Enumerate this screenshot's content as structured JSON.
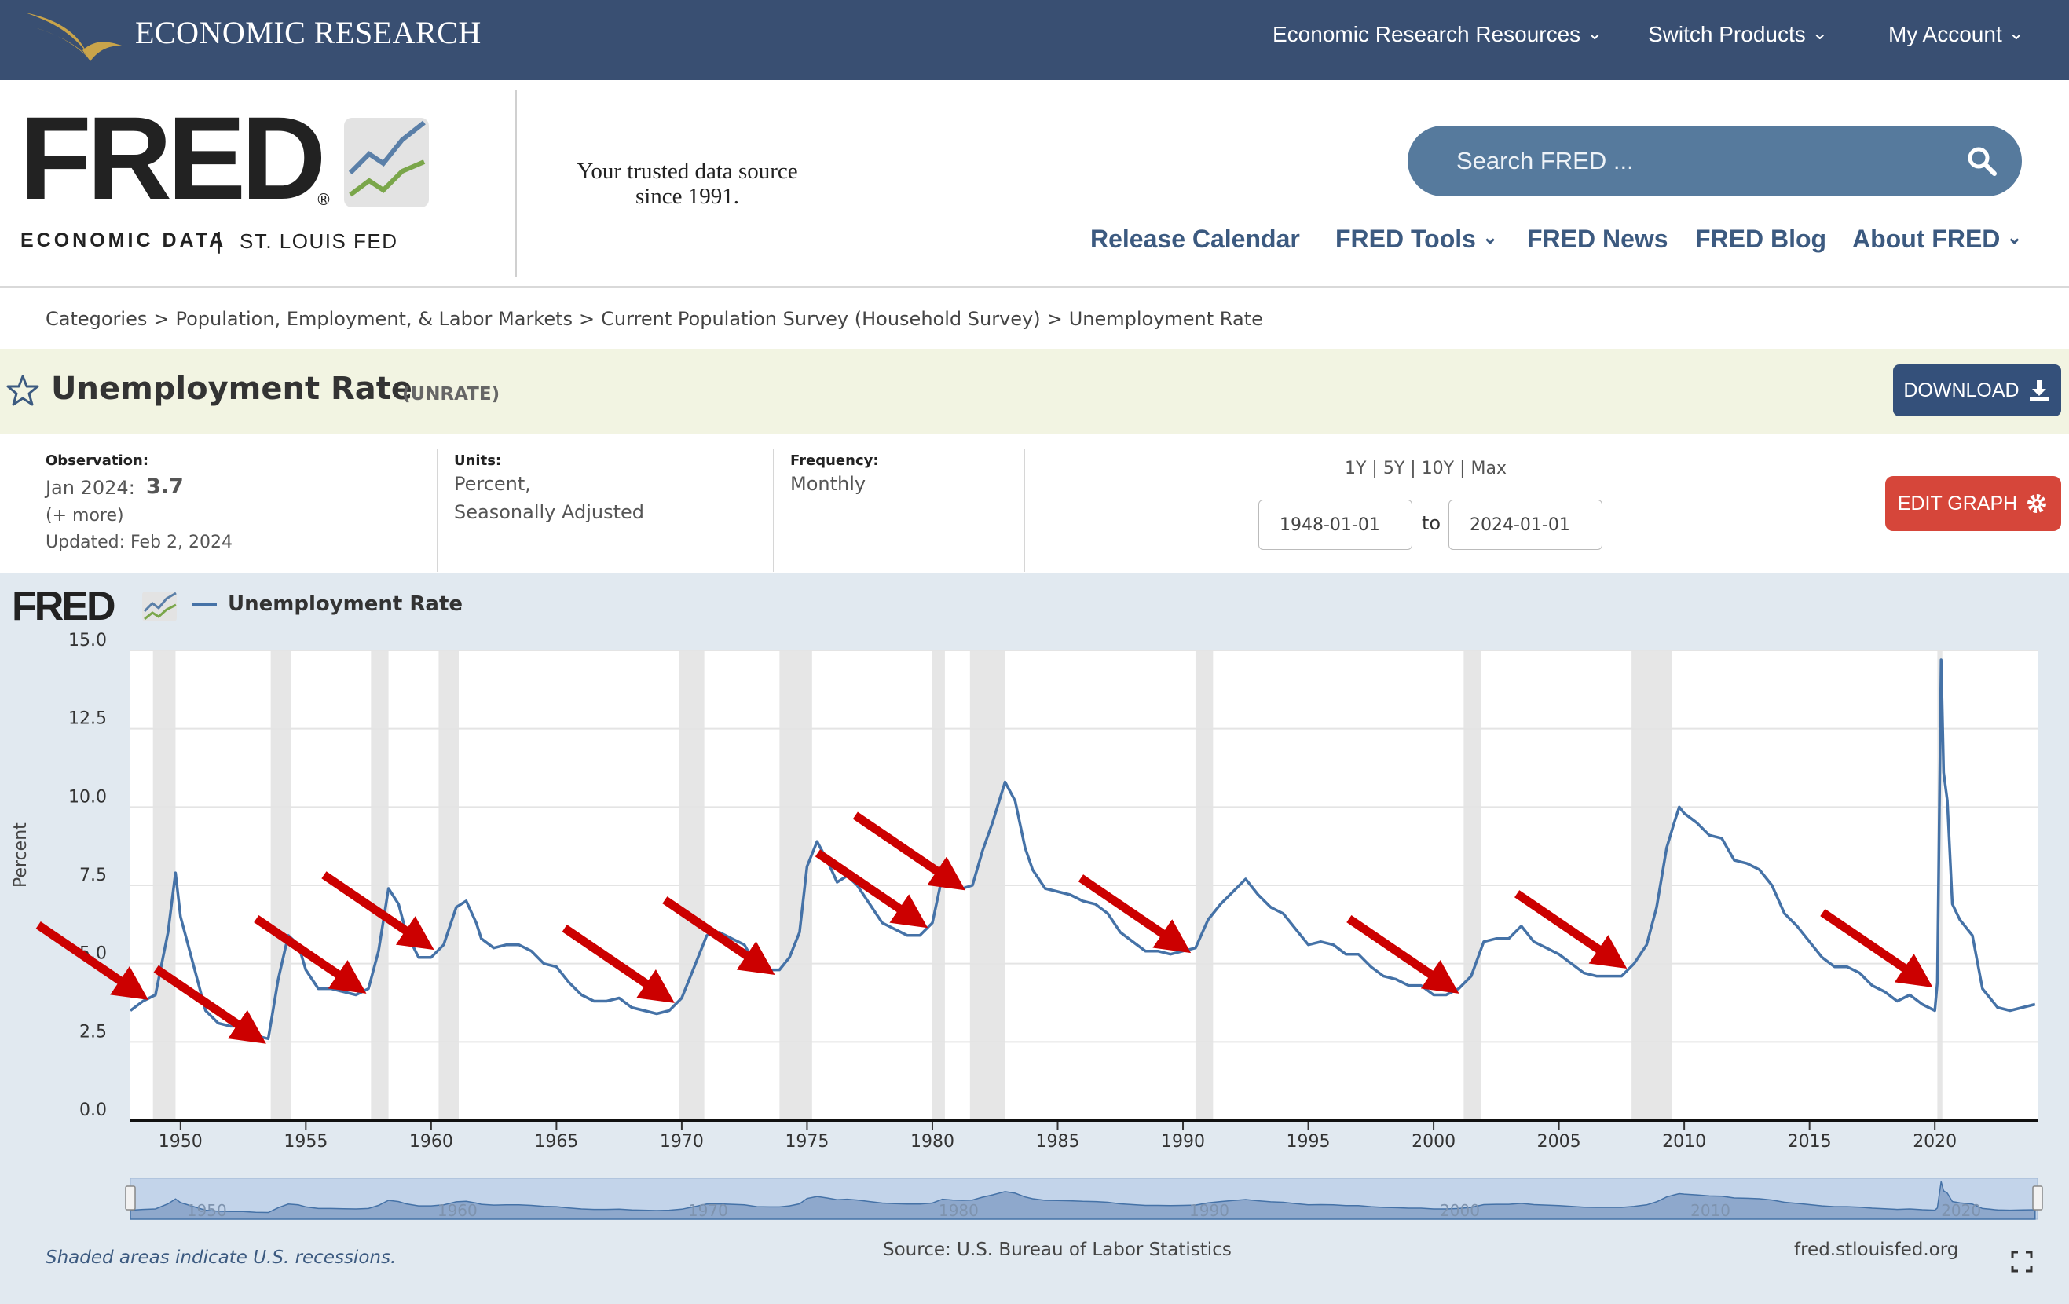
{
  "banner": {
    "brand": "ECONOMIC RESEARCH",
    "nav": [
      "Economic Research Resources",
      "Switch Products",
      "My Account"
    ]
  },
  "header": {
    "logo_word": "FRED",
    "logo_reg": "®",
    "econ_data": "ECONOMIC DATA",
    "divider": "|",
    "stl_fed": "ST. LOUIS FED",
    "tagline_line1": "Your trusted data source",
    "tagline_line2": "since 1991.",
    "search_placeholder": "Search FRED ...",
    "nav": [
      "Release Calendar",
      "FRED Tools",
      "FRED News",
      "FRED Blog",
      "About FRED"
    ]
  },
  "breadcrumb": [
    "Categories",
    "Population, Employment, & Labor Markets",
    "Current Population Survey (Household Survey)",
    "Unemployment Rate"
  ],
  "series": {
    "title": "Unemployment Rate",
    "id": "(UNRATE)",
    "download_label": "DOWNLOAD",
    "edit_label": "EDIT GRAPH"
  },
  "meta": {
    "observation_label": "Observation:",
    "observation_date": "Jan 2024:",
    "observation_value": "3.7",
    "more": "(+ more)",
    "updated": "Updated: Feb 2, 2024",
    "units_label": "Units:",
    "units_line1": "Percent,",
    "units_line2": "Seasonally Adjusted",
    "frequency_label": "Frequency:",
    "frequency_value": "Monthly",
    "range_links": [
      "1Y",
      "5Y",
      "10Y",
      "Max"
    ],
    "date_from": "1948-01-01",
    "date_to": "2024-01-01",
    "to_label": "to"
  },
  "chart_footer": {
    "chart_logo": "FRED",
    "recession_note": "Shaded areas indicate U.S. recessions.",
    "source": "Source: U.S. Bureau of Labor Statistics",
    "url": "fred.stlouisfed.org"
  },
  "colors": {
    "banner": "#394f72",
    "line": "#4572a7",
    "recession": "#e6e6e6",
    "arrow": "#cc0000",
    "edit_button": "#d6463a",
    "download_button": "#34507a"
  },
  "chart_data": {
    "type": "line",
    "title": "",
    "legend": [
      "Unemployment Rate"
    ],
    "ylabel": "Percent",
    "xlabel": "",
    "xlim": [
      1948,
      2024.1
    ],
    "ylim": [
      0,
      15
    ],
    "yticks": [
      "0.0",
      "2.5",
      "5.0",
      "7.5",
      "10.0",
      "12.5",
      "15.0"
    ],
    "xticks": [
      "1950",
      "1955",
      "1960",
      "1965",
      "1970",
      "1975",
      "1980",
      "1985",
      "1990",
      "1995",
      "2000",
      "2005",
      "2010",
      "2015",
      "2020"
    ],
    "navigator_labels": [
      "1950",
      "1960",
      "1970",
      "1980",
      "1990",
      "2000",
      "2010",
      "2020"
    ],
    "recessions": [
      [
        1948.9,
        1949.8
      ],
      [
        1953.6,
        1954.4
      ],
      [
        1957.6,
        1958.3
      ],
      [
        1960.3,
        1961.1
      ],
      [
        1969.9,
        1970.9
      ],
      [
        1973.9,
        1975.2
      ],
      [
        1980.0,
        1980.5
      ],
      [
        1981.5,
        1982.9
      ],
      [
        1990.5,
        1991.2
      ],
      [
        2001.2,
        2001.9
      ],
      [
        2007.9,
        2009.5
      ],
      [
        2020.1,
        2020.3
      ]
    ],
    "series": [
      {
        "name": "Unemployment Rate",
        "x": [
          1948.0,
          1948.5,
          1949.0,
          1949.5,
          1949.8,
          1950.0,
          1950.5,
          1951.0,
          1951.5,
          1952.0,
          1952.5,
          1953.0,
          1953.5,
          1953.9,
          1954.3,
          1954.7,
          1955.0,
          1955.5,
          1956.0,
          1956.5,
          1957.0,
          1957.5,
          1957.9,
          1958.3,
          1958.7,
          1959.0,
          1959.5,
          1960.0,
          1960.5,
          1961.0,
          1961.4,
          1961.8,
          1962.0,
          1962.5,
          1963.0,
          1963.5,
          1964.0,
          1964.5,
          1965.0,
          1965.5,
          1966.0,
          1966.5,
          1967.0,
          1967.5,
          1968.0,
          1968.5,
          1969.0,
          1969.5,
          1970.0,
          1970.5,
          1971.0,
          1971.5,
          1972.0,
          1972.5,
          1973.0,
          1973.5,
          1973.9,
          1974.3,
          1974.7,
          1975.0,
          1975.4,
          1975.8,
          1976.2,
          1976.6,
          1977.0,
          1977.5,
          1978.0,
          1978.5,
          1979.0,
          1979.5,
          1980.0,
          1980.4,
          1980.8,
          1981.2,
          1981.6,
          1982.0,
          1982.4,
          1982.9,
          1983.3,
          1983.7,
          1984.0,
          1984.5,
          1985.0,
          1985.5,
          1986.0,
          1986.5,
          1987.0,
          1987.5,
          1988.0,
          1988.5,
          1989.0,
          1989.5,
          1990.0,
          1990.5,
          1991.0,
          1991.5,
          1992.0,
          1992.5,
          1993.0,
          1993.5,
          1994.0,
          1994.5,
          1995.0,
          1995.5,
          1996.0,
          1996.5,
          1997.0,
          1997.5,
          1998.0,
          1998.5,
          1999.0,
          1999.5,
          2000.0,
          2000.5,
          2001.0,
          2001.5,
          2002.0,
          2002.5,
          2003.0,
          2003.5,
          2004.0,
          2004.5,
          2005.0,
          2005.5,
          2006.0,
          2006.5,
          2007.0,
          2007.5,
          2008.0,
          2008.5,
          2008.9,
          2009.3,
          2009.6,
          2009.8,
          2010.0,
          2010.5,
          2011.0,
          2011.5,
          2012.0,
          2012.5,
          2013.0,
          2013.5,
          2014.0,
          2014.5,
          2015.0,
          2015.5,
          2016.0,
          2016.5,
          2017.0,
          2017.5,
          2018.0,
          2018.5,
          2019.0,
          2019.5,
          2020.0,
          2020.1,
          2020.25,
          2020.35,
          2020.5,
          2020.7,
          2021.0,
          2021.5,
          2021.9,
          2022.2,
          2022.5,
          2023.0,
          2023.5,
          2024.0
        ],
        "values": [
          3.5,
          3.8,
          4.0,
          6.0,
          7.9,
          6.5,
          5.0,
          3.5,
          3.1,
          3.0,
          3.0,
          2.7,
          2.6,
          4.5,
          5.9,
          5.6,
          4.8,
          4.2,
          4.2,
          4.1,
          4.0,
          4.2,
          5.4,
          7.4,
          6.9,
          6.0,
          5.2,
          5.2,
          5.6,
          6.8,
          7.0,
          6.3,
          5.8,
          5.5,
          5.6,
          5.6,
          5.4,
          5.0,
          4.9,
          4.4,
          4.0,
          3.8,
          3.8,
          3.9,
          3.6,
          3.5,
          3.4,
          3.5,
          3.9,
          4.9,
          5.9,
          6.0,
          5.8,
          5.6,
          4.9,
          4.8,
          4.8,
          5.2,
          6.0,
          8.1,
          8.9,
          8.3,
          7.6,
          7.8,
          7.5,
          6.9,
          6.3,
          6.1,
          5.9,
          5.9,
          6.3,
          7.8,
          7.5,
          7.4,
          7.5,
          8.6,
          9.5,
          10.8,
          10.2,
          8.7,
          8.0,
          7.4,
          7.3,
          7.2,
          7.0,
          6.9,
          6.6,
          6.0,
          5.7,
          5.4,
          5.4,
          5.3,
          5.4,
          5.5,
          6.4,
          6.9,
          7.3,
          7.7,
          7.2,
          6.8,
          6.6,
          6.1,
          5.6,
          5.7,
          5.6,
          5.3,
          5.3,
          4.9,
          4.6,
          4.5,
          4.3,
          4.3,
          4.0,
          4.0,
          4.2,
          4.6,
          5.7,
          5.8,
          5.8,
          6.2,
          5.7,
          5.5,
          5.3,
          5.0,
          4.7,
          4.6,
          4.6,
          4.6,
          5.0,
          5.6,
          6.8,
          8.7,
          9.5,
          10.0,
          9.8,
          9.5,
          9.1,
          9.0,
          8.3,
          8.2,
          8.0,
          7.5,
          6.6,
          6.2,
          5.7,
          5.2,
          4.9,
          4.9,
          4.7,
          4.3,
          4.1,
          3.8,
          4.0,
          3.7,
          3.5,
          4.4,
          14.7,
          11.1,
          10.2,
          6.9,
          6.4,
          5.9,
          4.2,
          3.9,
          3.6,
          3.5,
          3.6,
          3.7
        ]
      }
    ],
    "annotations": "Red arrows point to the start of each recession"
  }
}
